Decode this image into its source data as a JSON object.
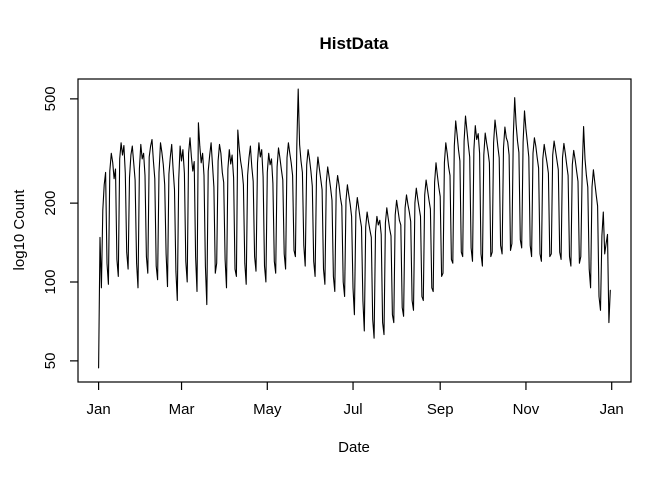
{
  "window": {
    "background_color": "#ffffff"
  },
  "chart_data": {
    "type": "line",
    "title": "HistData",
    "xlabel": "Date",
    "ylabel": "log10 Count",
    "y_scale": "log10",
    "grid": false,
    "legend": "none",
    "line_color": "#000000",
    "axis_color": "#000000",
    "text_color": "#000000",
    "y_ticks": [
      50,
      100,
      200,
      500
    ],
    "ylim": [
      42,
      600
    ],
    "x_tick_labels": [
      "Jan",
      "Mar",
      "May",
      "Jul",
      "Sep",
      "Nov",
      "Jan"
    ],
    "x_tick_days": [
      0,
      59,
      120,
      181,
      243,
      304,
      365
    ],
    "x_unit": "day of year (daily data, Jan 1 - Dec 31, 365 points)",
    "series": [
      {
        "name": "HistData",
        "color": "#000000",
        "values": [
          47,
          148,
          95,
          188,
          235,
          262,
          118,
          98,
          265,
          310,
          286,
          248,
          270,
          122,
          105,
          295,
          340,
          305,
          332,
          260,
          130,
          112,
          250,
          305,
          330,
          285,
          245,
          118,
          95,
          270,
          335,
          295,
          310,
          255,
          125,
          108,
          300,
          330,
          350,
          290,
          248,
          115,
          102,
          262,
          340,
          312,
          280,
          235,
          128,
          96,
          258,
          300,
          335,
          270,
          225,
          110,
          85,
          245,
          330,
          290,
          320,
          260,
          120,
          100,
          310,
          355,
          300,
          265,
          288,
          125,
          92,
          405,
          330,
          285,
          310,
          255,
          115,
          82,
          265,
          305,
          340,
          280,
          230,
          108,
          118,
          290,
          335,
          310,
          262,
          240,
          122,
          95,
          270,
          320,
          282,
          305,
          250,
          112,
          105,
          380,
          325,
          290,
          268,
          235,
          118,
          98,
          255,
          298,
          330,
          275,
          242,
          125,
          110,
          285,
          340,
          300,
          320,
          252,
          115,
          100,
          262,
          310,
          280,
          295,
          238,
          120,
          108,
          275,
          325,
          298,
          270,
          245,
          128,
          112,
          298,
          340,
          310,
          285,
          255,
          132,
          125,
          330,
          545,
          335,
          290,
          262,
          138,
          115,
          280,
          320,
          295,
          265,
          232,
          120,
          105,
          255,
          300,
          272,
          248,
          225,
          112,
          98,
          240,
          275,
          252,
          230,
          205,
          105,
          92,
          225,
          255,
          235,
          210,
          195,
          100,
          88,
          205,
          235,
          215,
          198,
          178,
          95,
          75,
          185,
          210,
          192,
          175,
          162,
          85,
          65,
          162,
          185,
          170,
          158,
          148,
          72,
          61,
          155,
          178,
          165,
          172,
          152,
          70,
          63,
          168,
          192,
          175,
          160,
          150,
          75,
          70,
          180,
          205,
          188,
          172,
          165,
          80,
          74,
          192,
          215,
          198,
          185,
          170,
          85,
          78,
          200,
          228,
          208,
          192,
          178,
          88,
          85,
          215,
          245,
          225,
          205,
          190,
          95,
          92,
          240,
          285,
          255,
          230,
          212,
          105,
          108,
          285,
          340,
          310,
          275,
          255,
          122,
          118,
          330,
          412,
          365,
          320,
          290,
          130,
          125,
          345,
          430,
          380,
          335,
          300,
          135,
          120,
          320,
          395,
          350,
          368,
          310,
          128,
          115,
          305,
          370,
          340,
          315,
          285,
          125,
          130,
          340,
          415,
          372,
          330,
          298,
          138,
          128,
          325,
          390,
          355,
          342,
          305,
          132,
          140,
          360,
          505,
          400,
          345,
          312,
          145,
          135,
          342,
          450,
          385,
          340,
          300,
          138,
          125,
          310,
          355,
          330,
          298,
          272,
          128,
          120,
          295,
          335,
          308,
          285,
          260,
          125,
          128,
          305,
          345,
          318,
          292,
          268,
          130,
          122,
          298,
          338,
          310,
          280,
          255,
          125,
          115,
          280,
          318,
          292,
          265,
          242,
          118,
          125,
          268,
          392,
          295,
          255,
          230,
          112,
          95,
          230,
          268,
          240,
          215,
          195,
          88,
          78,
          150,
          185,
          128,
          140,
          152,
          70,
          93
        ]
      }
    ]
  }
}
